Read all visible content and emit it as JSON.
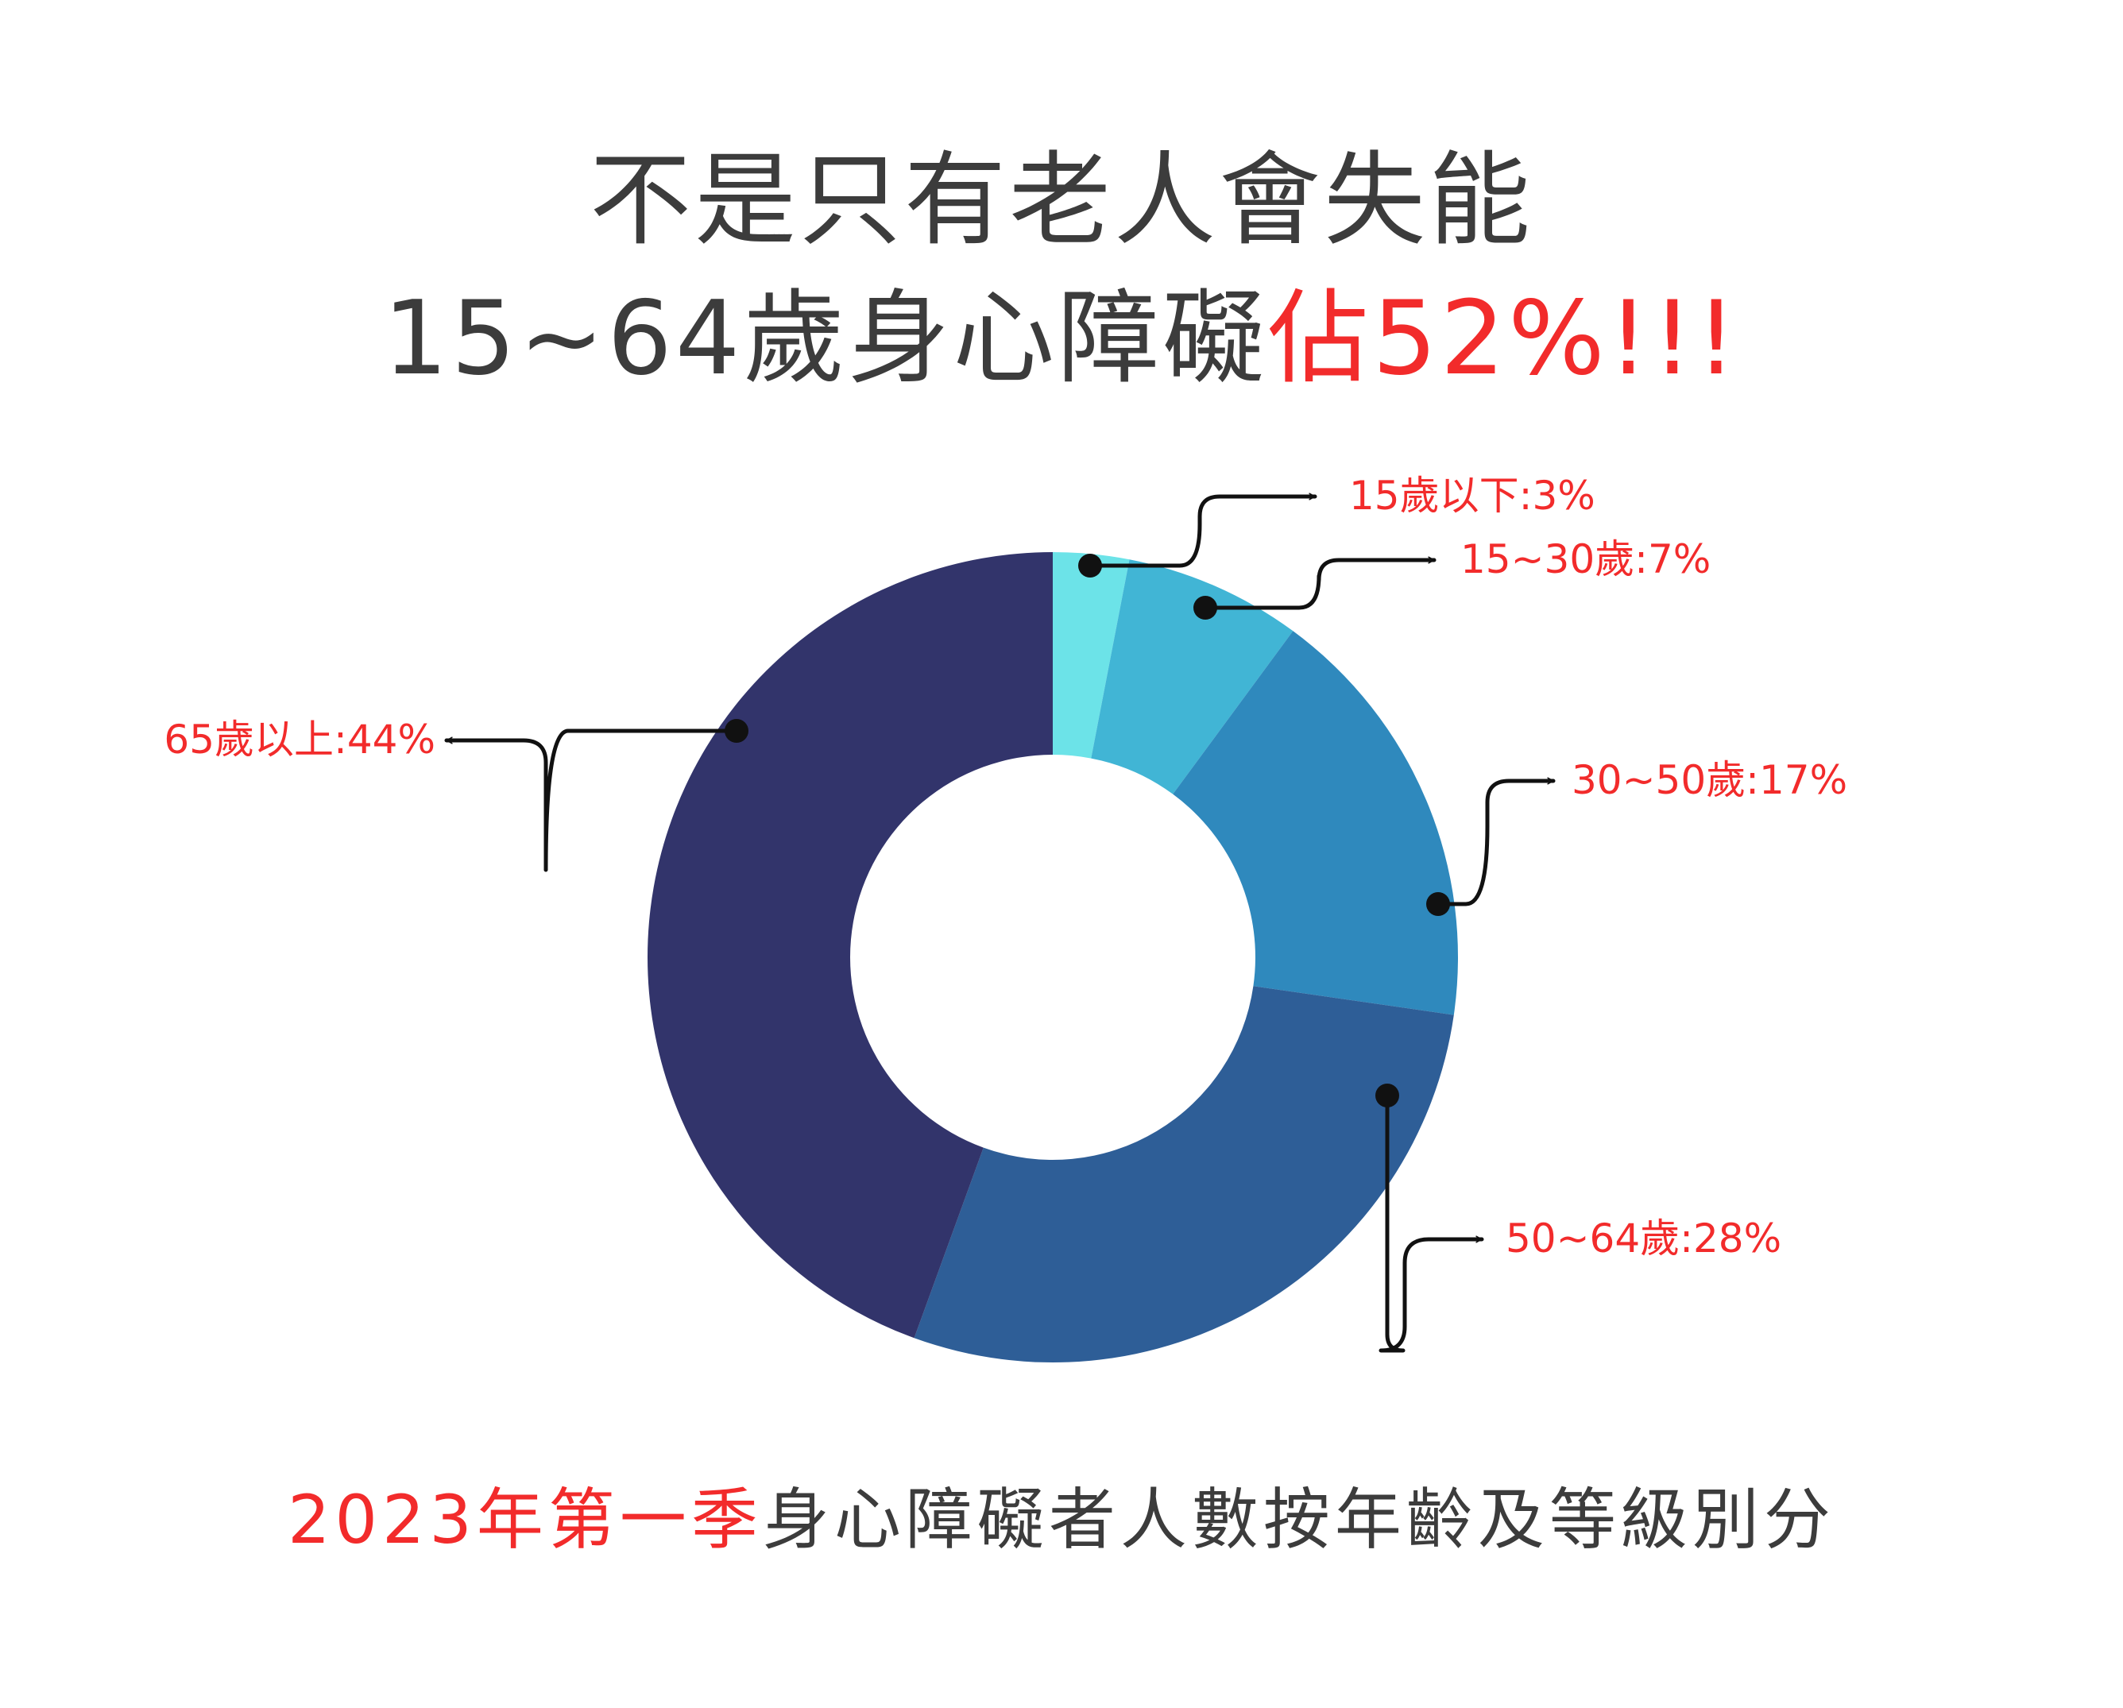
{
  "title": {
    "line1": "不是只有老人會失能",
    "line2_main": "15~64歲身心障礙",
    "line2_highlight": "佔52%!!!"
  },
  "subtitle": {
    "highlight": "2023年第一季",
    "main": "身心障礙者人數按年齡及等級別分"
  },
  "colors": {
    "title": "#3c3c3c",
    "highlight": "#f22b2b"
  },
  "chart_data": {
    "type": "pie",
    "donut": true,
    "categories": [
      "15歲以下",
      "15~30歲",
      "30~50歲",
      "50~64歲",
      "65歲以上"
    ],
    "values": [
      3,
      7,
      17,
      28,
      44
    ],
    "labels": [
      "15歲以下:3%",
      "15~30歲:7%",
      "30~50歲:17%",
      "50~64歲:28%",
      "65歲以上:44%"
    ],
    "colors": [
      "#6ce3e8",
      "#41b5d5",
      "#2f89bd",
      "#2e5e97",
      "#32346b"
    ]
  }
}
